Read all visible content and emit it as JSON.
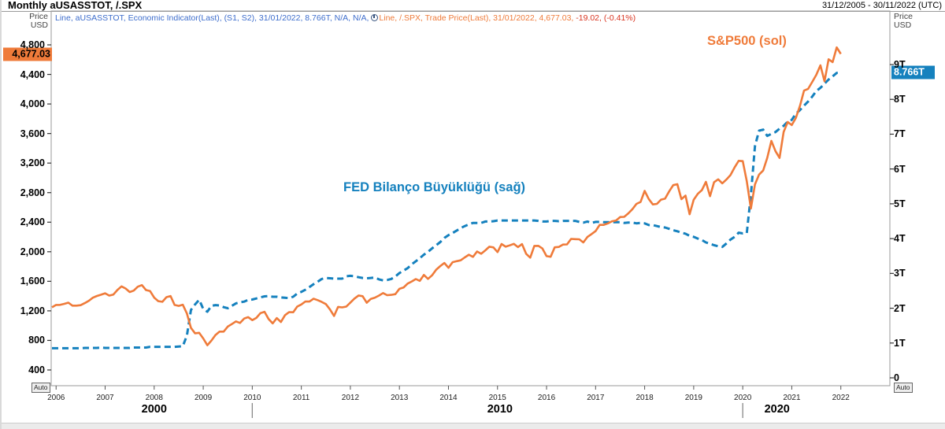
{
  "window": {
    "title": "Monthly aUSASSTOT, /.SPX",
    "date_range": "31/12/2005 - 30/11/2022 (UTC)"
  },
  "corner_labels": {
    "left_price": "Price",
    "left_currency": "USD",
    "right_price": "Price",
    "right_currency": "USD"
  },
  "legend": {
    "series1_text": "Line, aUSASSTOT, Economic Indicator(Last), (S1, S2), 31/01/2022, 8.766T, N/A, N/A,",
    "series2_text": "Line, /.SPX, Trade Price(Last), 31/01/2022, 4,677.03,",
    "series2_change": "-19.02, (-0.41%)"
  },
  "badges": {
    "left_value_label": "4,677.03",
    "right_value_label": "8.766T"
  },
  "annotations": {
    "sp500": "S&P500 (sol)",
    "fed": "FED Bilanço Büyüklüğü (sağ)"
  },
  "auto_buttons": {
    "left": "Auto",
    "right": "Auto"
  },
  "colors": {
    "orange": "#ef7b3a",
    "blue": "#1581be",
    "legend_blue": "#3d6dcc",
    "red": "#d93420",
    "border_grey": "#9a9a9a",
    "tick_grey": "#777777"
  },
  "chart_data": {
    "type": "line",
    "title": "Monthly aUSASSTOT, /.SPX",
    "x_axis": {
      "start_year": 2005.9,
      "end_year": 2023.0,
      "year_ticks": [
        2006,
        2007,
        2008,
        2009,
        2010,
        2011,
        2012,
        2013,
        2014,
        2015,
        2016,
        2017,
        2018,
        2019,
        2020,
        2021,
        2022
      ],
      "decades": [
        {
          "label": "2000",
          "center_year": 2008.0
        },
        {
          "label": "2010",
          "center_year": 2015.05
        },
        {
          "label": "2020",
          "center_year": 2020.7
        }
      ],
      "decade_separator_years": [
        2010,
        2020
      ]
    },
    "left_axis": {
      "title": "Price USD (S&P500)",
      "ticks": [
        {
          "label": "4,800",
          "value": 4800
        },
        {
          "label": "4,400",
          "value": 4400
        },
        {
          "label": "4,000",
          "value": 4000
        },
        {
          "label": "3,600",
          "value": 3600
        },
        {
          "label": "3,200",
          "value": 3200
        },
        {
          "label": "2,800",
          "value": 2800
        },
        {
          "label": "2,400",
          "value": 2400
        },
        {
          "label": "2,000",
          "value": 2000
        },
        {
          "label": "1,600",
          "value": 1600
        },
        {
          "label": "1,200",
          "value": 1200
        },
        {
          "label": "800",
          "value": 800
        },
        {
          "label": "400",
          "value": 400
        }
      ],
      "last_value": 4677.03
    },
    "right_axis": {
      "title": "Fed total assets (trillions USD)",
      "ticks": [
        {
          "label": "9T",
          "value": 9
        },
        {
          "label": "8T",
          "value": 8
        },
        {
          "label": "7T",
          "value": 7
        },
        {
          "label": "6T",
          "value": 6
        },
        {
          "label": "5T",
          "value": 5
        },
        {
          "label": "4T",
          "value": 4
        },
        {
          "label": "3T",
          "value": 3
        },
        {
          "label": "2T",
          "value": 2
        },
        {
          "label": "1T",
          "value": 1
        },
        {
          "label": "0",
          "value": 0
        }
      ],
      "last_value": 8.766
    },
    "series": [
      {
        "name": "aUSASSTOT — FED Bilanço Büyüklüğü (sağ)",
        "axis": "right",
        "style": "dashed",
        "color_key": "blue",
        "start_year": 2005.9167,
        "step_years": 0.0833333,
        "values": [
          0.85,
          0.85,
          0.85,
          0.85,
          0.85,
          0.85,
          0.85,
          0.85,
          0.86,
          0.86,
          0.86,
          0.86,
          0.87,
          0.86,
          0.86,
          0.86,
          0.86,
          0.86,
          0.86,
          0.86,
          0.87,
          0.87,
          0.87,
          0.87,
          0.89,
          0.89,
          0.89,
          0.89,
          0.89,
          0.89,
          0.89,
          0.9,
          0.91,
          1.21,
          1.95,
          2.11,
          2.24,
          1.98,
          1.9,
          2.07,
          2.09,
          2.08,
          2.03,
          2.0,
          2.07,
          2.14,
          2.17,
          2.19,
          2.24,
          2.25,
          2.28,
          2.31,
          2.34,
          2.35,
          2.33,
          2.33,
          2.31,
          2.3,
          2.29,
          2.33,
          2.42,
          2.47,
          2.53,
          2.61,
          2.69,
          2.76,
          2.84,
          2.87,
          2.86,
          2.85,
          2.85,
          2.85,
          2.92,
          2.93,
          2.92,
          2.89,
          2.87,
          2.86,
          2.87,
          2.88,
          2.83,
          2.8,
          2.81,
          2.84,
          2.91,
          3.01,
          3.08,
          3.15,
          3.26,
          3.35,
          3.44,
          3.54,
          3.62,
          3.72,
          3.81,
          3.9,
          4.02,
          4.1,
          4.16,
          4.23,
          4.3,
          4.36,
          4.41,
          4.45,
          4.45,
          4.45,
          4.49,
          4.49,
          4.5,
          4.52,
          4.52,
          4.52,
          4.52,
          4.52,
          4.52,
          4.52,
          4.52,
          4.52,
          4.52,
          4.51,
          4.49,
          4.49,
          4.51,
          4.51,
          4.5,
          4.51,
          4.51,
          4.51,
          4.51,
          4.48,
          4.46,
          4.49,
          4.45,
          4.48,
          4.48,
          4.47,
          4.47,
          4.47,
          4.47,
          4.47,
          4.45,
          4.46,
          4.46,
          4.44,
          4.45,
          4.44,
          4.39,
          4.39,
          4.36,
          4.33,
          4.32,
          4.28,
          4.24,
          4.21,
          4.17,
          4.14,
          4.08,
          4.05,
          4.0,
          3.96,
          3.89,
          3.85,
          3.81,
          3.78,
          3.76,
          3.86,
          3.97,
          4.05,
          4.17,
          4.15,
          4.16,
          5.25,
          6.66,
          7.1,
          7.13,
          6.95,
          7.01,
          7.06,
          7.16,
          7.24,
          7.36,
          7.41,
          7.59,
          7.69,
          7.82,
          7.94,
          8.08,
          8.24,
          8.33,
          8.45,
          8.57,
          8.66,
          8.76,
          8.766
        ]
      },
      {
        "name": "/.SPX — S&P500 (sol)",
        "axis": "left",
        "style": "solid",
        "color_key": "orange",
        "start_year": 2005.9167,
        "step_years": 0.0833333,
        "values": [
          1248,
          1280,
          1281,
          1295,
          1311,
          1270,
          1270,
          1277,
          1304,
          1336,
          1378,
          1401,
          1418,
          1438,
          1407,
          1421,
          1482,
          1531,
          1503,
          1455,
          1474,
          1527,
          1549,
          1481,
          1468,
          1379,
          1331,
          1323,
          1386,
          1400,
          1280,
          1267,
          1283,
          1165,
          969,
          896,
          903,
          826,
          735,
          798,
          873,
          919,
          919,
          987,
          1021,
          1057,
          1036,
          1096,
          1115,
          1074,
          1104,
          1169,
          1187,
          1089,
          1031,
          1102,
          1049,
          1141,
          1183,
          1181,
          1258,
          1286,
          1327,
          1326,
          1364,
          1345,
          1321,
          1292,
          1219,
          1131,
          1253,
          1247,
          1258,
          1312,
          1366,
          1408,
          1398,
          1310,
          1362,
          1379,
          1407,
          1441,
          1412,
          1416,
          1426,
          1498,
          1515,
          1569,
          1598,
          1631,
          1606,
          1686,
          1633,
          1682,
          1757,
          1806,
          1848,
          1783,
          1859,
          1872,
          1884,
          1924,
          1960,
          1931,
          2003,
          1972,
          2018,
          2068,
          2059,
          1995,
          2105,
          2068,
          2086,
          2107,
          2063,
          2104,
          1972,
          1920,
          2079,
          2080,
          2044,
          1940,
          1932,
          2060,
          2065,
          2097,
          2099,
          2174,
          2171,
          2168,
          2126,
          2199,
          2239,
          2279,
          2364,
          2363,
          2384,
          2412,
          2423,
          2470,
          2472,
          2519,
          2575,
          2648,
          2674,
          2824,
          2714,
          2641,
          2648,
          2705,
          2718,
          2816,
          2902,
          2914,
          2712,
          2760,
          2507,
          2704,
          2784,
          2834,
          2946,
          2752,
          2942,
          2980,
          2926,
          2977,
          3038,
          3141,
          3231,
          3226,
          2954,
          2585,
          2912,
          3044,
          3100,
          3271,
          3500,
          3363,
          3270,
          3622,
          3756,
          3714,
          3811,
          3973,
          4181,
          4204,
          4298,
          4395,
          4523,
          4308,
          4605,
          4567,
          4766,
          4677.03
        ]
      }
    ]
  }
}
